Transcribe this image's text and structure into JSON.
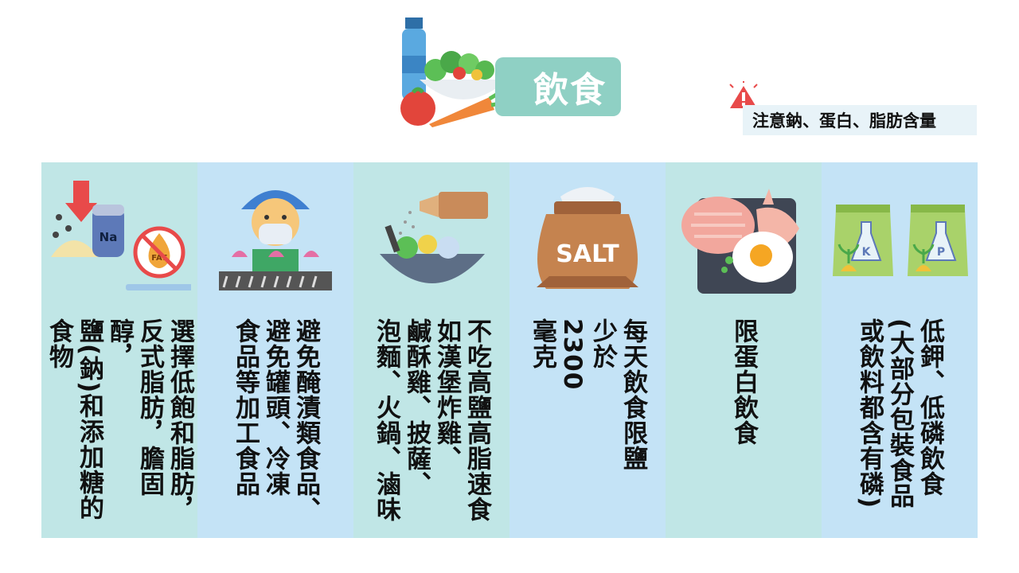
{
  "header": {
    "title": "飲食"
  },
  "warning": {
    "text": "注意鈉、蛋白、脂肪含量",
    "icon": "warning-triangle-icon"
  },
  "colors": {
    "teal_panel": "#c0e6e6",
    "blue_panel": "#c4e3f6",
    "title_pill": "#8fd0c4"
  },
  "columns": [
    {
      "text": "選擇低飽和脂肪，\n反式脂肪，膽固醇，\n鹽(鈉)和添加糖的\n食物",
      "icon": "salt-fat-icon",
      "icon_text_1": "Na",
      "icon_text_2": "FAT"
    },
    {
      "text": "避免醃漬類食品、\n避免罐頭、冷凍\n食品等加工食品",
      "icon": "food-worker-icon"
    },
    {
      "text": "不吃高鹽高脂速食\n如漢堡炸雞、\n鹹酥雞、披薩、\n泡麵、火鍋、滷味",
      "icon": "salt-shaker-bowl-icon"
    },
    {
      "text": "每天飲食限鹽\n少於\n2300\n毫克",
      "icon": "salt-bag-icon",
      "icon_text": "SALT"
    },
    {
      "text": "限蛋白飲食",
      "icon": "meat-fish-egg-icon"
    },
    {
      "text": "低鉀、低磷飲食\n(大部分包裝食品\n或飲料都含有磷)",
      "icon": "potassium-phosphorus-bags-icon",
      "icon_text_1": "K",
      "icon_text_2": "P"
    }
  ]
}
